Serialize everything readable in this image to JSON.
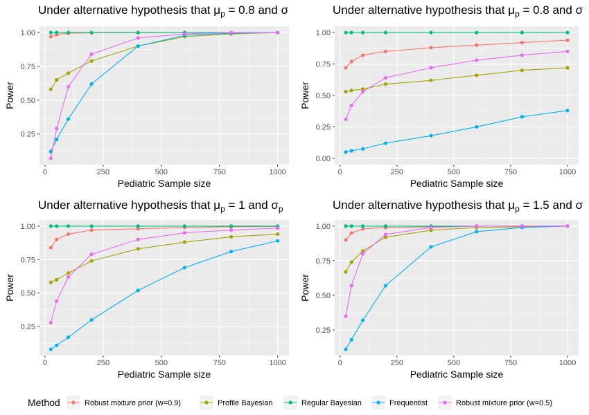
{
  "legend": {
    "title": "Method",
    "items": [
      {
        "name": "Robust mixture prior (w=0.9)",
        "color": "#F8766D"
      },
      {
        "name": "Profile Bayesian",
        "color": "#A3A500"
      },
      {
        "name": "Regular Bayesian",
        "color": "#00BF7D"
      },
      {
        "name": "Frequentist",
        "color": "#00B0F6"
      },
      {
        "name": "Robust mixture prior (w=0.5)",
        "color": "#E76BF3"
      }
    ],
    "position": "bottom"
  },
  "chart_data": [
    {
      "type": "line",
      "title": {
        "prefix": "Under alternative hypothesis that ",
        "mu_sub": "p",
        "mu_value": " = 0.8 and ",
        "sigma": "σ"
      },
      "xlabel": "Pediatric Sample size",
      "ylabel": "Power",
      "xlim": [
        0,
        1000
      ],
      "ylim": [
        0.07,
        1.0
      ],
      "x_ticks": [
        0,
        250,
        500,
        750,
        1000
      ],
      "x_tick_labels": [
        "0",
        "250",
        "500",
        "750",
        "1000"
      ],
      "y_ticks": [
        0.25,
        0.5,
        0.75,
        1.0
      ],
      "y_tick_labels": [
        "0.25",
        "0.50",
        "0.75",
        "1.00"
      ],
      "grid": true,
      "x": [
        25,
        50,
        100,
        200,
        400,
        600,
        800,
        1000
      ],
      "series": [
        {
          "name": "Robust mixture prior (w=0.9)",
          "values": [
            0.97,
            0.985,
            0.995,
            0.998,
            0.999,
            1.0,
            1.0,
            1.0
          ]
        },
        {
          "name": "Profile Bayesian",
          "values": [
            0.58,
            0.65,
            0.7,
            0.79,
            0.9,
            0.97,
            0.99,
            1.0
          ]
        },
        {
          "name": "Regular Bayesian",
          "values": [
            1.0,
            1.0,
            1.0,
            1.0,
            1.0,
            1.0,
            1.0,
            1.0
          ]
        },
        {
          "name": "Frequentist",
          "values": [
            0.12,
            0.21,
            0.36,
            0.62,
            0.9,
            0.98,
            0.995,
            1.0
          ]
        },
        {
          "name": "Robust mixture prior (w=0.5)",
          "values": [
            0.07,
            0.29,
            0.6,
            0.84,
            0.96,
            0.99,
            1.0,
            1.0
          ]
        }
      ]
    },
    {
      "type": "line",
      "title": {
        "prefix": "Under alternative hypothesis that ",
        "mu_sub": "p",
        "mu_value": " = 0.8 and ",
        "sigma": "σ"
      },
      "xlabel": "Pediatric Sample size",
      "ylabel": "Power",
      "xlim": [
        0,
        1000
      ],
      "ylim": [
        0.0,
        1.0
      ],
      "x_ticks": [
        0,
        250,
        500,
        750,
        1000
      ],
      "x_tick_labels": [
        "0",
        "250",
        "500",
        "750",
        "1000"
      ],
      "y_ticks": [
        0.0,
        0.25,
        0.5,
        0.75,
        1.0
      ],
      "y_tick_labels": [
        "0.00",
        "0.25",
        "0.50",
        "0.75",
        "1.00"
      ],
      "grid": true,
      "x": [
        25,
        50,
        100,
        200,
        400,
        600,
        800,
        1000
      ],
      "series": [
        {
          "name": "Robust mixture prior (w=0.9)",
          "values": [
            0.72,
            0.77,
            0.82,
            0.85,
            0.88,
            0.9,
            0.92,
            0.94
          ]
        },
        {
          "name": "Profile Bayesian",
          "values": [
            0.53,
            0.54,
            0.55,
            0.59,
            0.62,
            0.66,
            0.7,
            0.72
          ]
        },
        {
          "name": "Regular Bayesian",
          "values": [
            1.0,
            1.0,
            1.0,
            1.0,
            1.0,
            1.0,
            1.0,
            1.0
          ]
        },
        {
          "name": "Frequentist",
          "values": [
            0.05,
            0.06,
            0.075,
            0.12,
            0.18,
            0.25,
            0.33,
            0.38
          ]
        },
        {
          "name": "Robust mixture prior (w=0.5)",
          "values": [
            0.31,
            0.42,
            0.53,
            0.64,
            0.72,
            0.78,
            0.82,
            0.85
          ]
        }
      ]
    },
    {
      "type": "line",
      "title": {
        "prefix": "Under alternative hypothesis that ",
        "mu_sub": "p",
        "mu_value": " = 1 and ",
        "sigma": "σ",
        "sigma_sub": "p"
      },
      "xlabel": "Pediatric Sample size",
      "ylabel": "Power",
      "xlim": [
        0,
        1000
      ],
      "ylim": [
        0.08,
        1.0
      ],
      "x_ticks": [
        0,
        250,
        500,
        750,
        1000
      ],
      "x_tick_labels": [
        "0",
        "250",
        "500",
        "750",
        "1000"
      ],
      "y_ticks": [
        0.25,
        0.5,
        0.75,
        1.0
      ],
      "y_tick_labels": [
        "0.25",
        "0.50",
        "0.75",
        "1.00"
      ],
      "grid": true,
      "x": [
        25,
        50,
        100,
        200,
        400,
        600,
        800,
        1000
      ],
      "series": [
        {
          "name": "Robust mixture prior (w=0.9)",
          "values": [
            0.84,
            0.9,
            0.94,
            0.97,
            0.98,
            0.99,
            0.995,
            0.998
          ]
        },
        {
          "name": "Profile Bayesian",
          "values": [
            0.58,
            0.6,
            0.65,
            0.74,
            0.83,
            0.88,
            0.92,
            0.94
          ]
        },
        {
          "name": "Regular Bayesian",
          "values": [
            1.0,
            1.0,
            1.0,
            1.0,
            1.0,
            1.0,
            1.0,
            1.0
          ]
        },
        {
          "name": "Frequentist",
          "values": [
            0.08,
            0.11,
            0.17,
            0.3,
            0.52,
            0.69,
            0.81,
            0.89
          ]
        },
        {
          "name": "Robust mixture prior (w=0.5)",
          "values": [
            0.28,
            0.44,
            0.62,
            0.79,
            0.9,
            0.95,
            0.97,
            0.985
          ]
        }
      ]
    },
    {
      "type": "line",
      "title": {
        "prefix": "Under alternative hypothesis that ",
        "mu_sub": "p",
        "mu_value": " = 1.5 and ",
        "sigma": "σ"
      },
      "xlabel": "Pediatric Sample size",
      "ylabel": "Power",
      "xlim": [
        0,
        1000
      ],
      "ylim": [
        0.11,
        1.0
      ],
      "x_ticks": [
        0,
        250,
        500,
        750,
        1000
      ],
      "x_tick_labels": [
        "0",
        "250",
        "500",
        "750",
        "1000"
      ],
      "y_ticks": [
        0.25,
        0.5,
        0.75,
        1.0
      ],
      "y_tick_labels": [
        "0.25",
        "0.50",
        "0.75",
        "1.00"
      ],
      "grid": true,
      "x": [
        25,
        50,
        100,
        200,
        400,
        600,
        800,
        1000
      ],
      "series": [
        {
          "name": "Robust mixture prior (w=0.9)",
          "values": [
            0.9,
            0.95,
            0.98,
            0.99,
            0.995,
            1.0,
            1.0,
            1.0
          ]
        },
        {
          "name": "Profile Bayesian",
          "values": [
            0.67,
            0.74,
            0.82,
            0.92,
            0.97,
            0.99,
            0.995,
            1.0
          ]
        },
        {
          "name": "Regular Bayesian",
          "values": [
            1.0,
            1.0,
            1.0,
            1.0,
            1.0,
            1.0,
            1.0,
            1.0
          ]
        },
        {
          "name": "Frequentist",
          "values": [
            0.11,
            0.18,
            0.32,
            0.57,
            0.85,
            0.96,
            0.99,
            1.0
          ]
        },
        {
          "name": "Robust mixture prior (w=0.5)",
          "values": [
            0.35,
            0.57,
            0.8,
            0.94,
            0.99,
            1.0,
            1.0,
            1.0
          ]
        }
      ]
    }
  ]
}
